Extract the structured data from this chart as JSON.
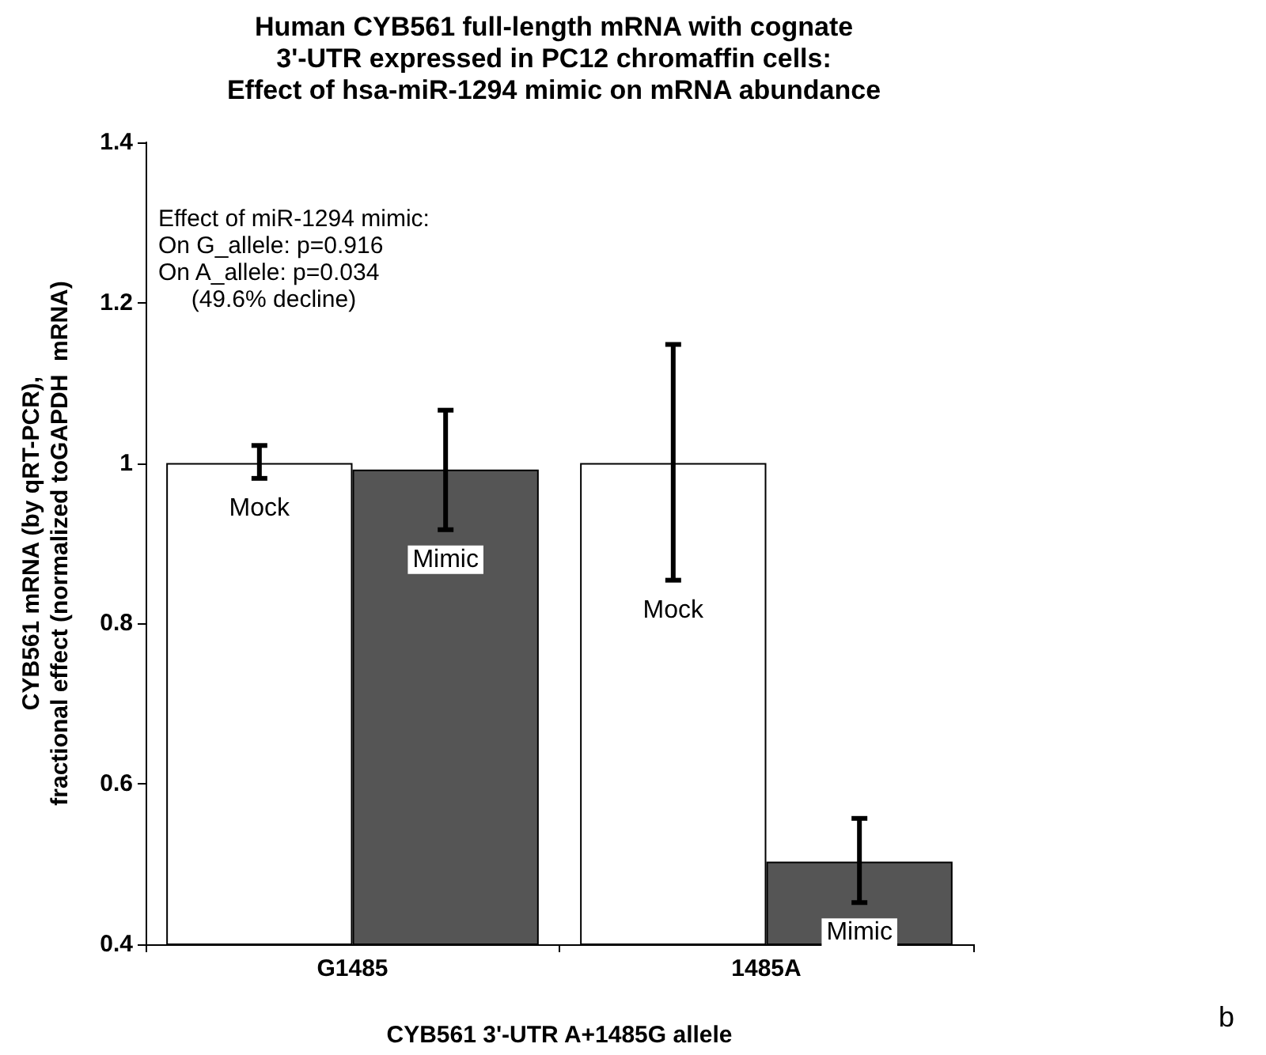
{
  "chart_data": {
    "type": "bar",
    "title": "Human CYB561 full-length mRNA with cognate\n3'-UTR expressed in PC12 chromaffin cells:\nEffect of hsa-miR-1294 mimic on mRNA abundance",
    "xlabel": "CYB561 3'-UTR A+1485G allele",
    "ylabel": "CYB561 mRNA (by qRT-PCR),\nfractional effect (normalized toGAPDH  mRNA)",
    "categories": [
      "G1485",
      "1485A"
    ],
    "series": [
      {
        "name": "Mock",
        "color": "#ffffff",
        "values": [
          1.0,
          1.0
        ],
        "errors": [
          [
            0.981,
            1.022
          ],
          [
            0.854,
            1.148
          ]
        ]
      },
      {
        "name": "Mimic",
        "color": "#555555",
        "values": [
          0.992,
          0.503
        ],
        "errors": [
          [
            0.917,
            1.066
          ],
          [
            0.452,
            0.557
          ]
        ]
      }
    ],
    "ylim": [
      0.4,
      1.4
    ],
    "yticks": [
      0.4,
      0.6,
      0.8,
      1,
      1.2,
      1.4
    ],
    "grid": false,
    "legend": false,
    "annotations": [
      "Effect of miR-1294 mimic:\nOn G_allele: p=0.916\nOn A_allele: p=0.034\n     (49.6% decline)",
      "b"
    ]
  }
}
